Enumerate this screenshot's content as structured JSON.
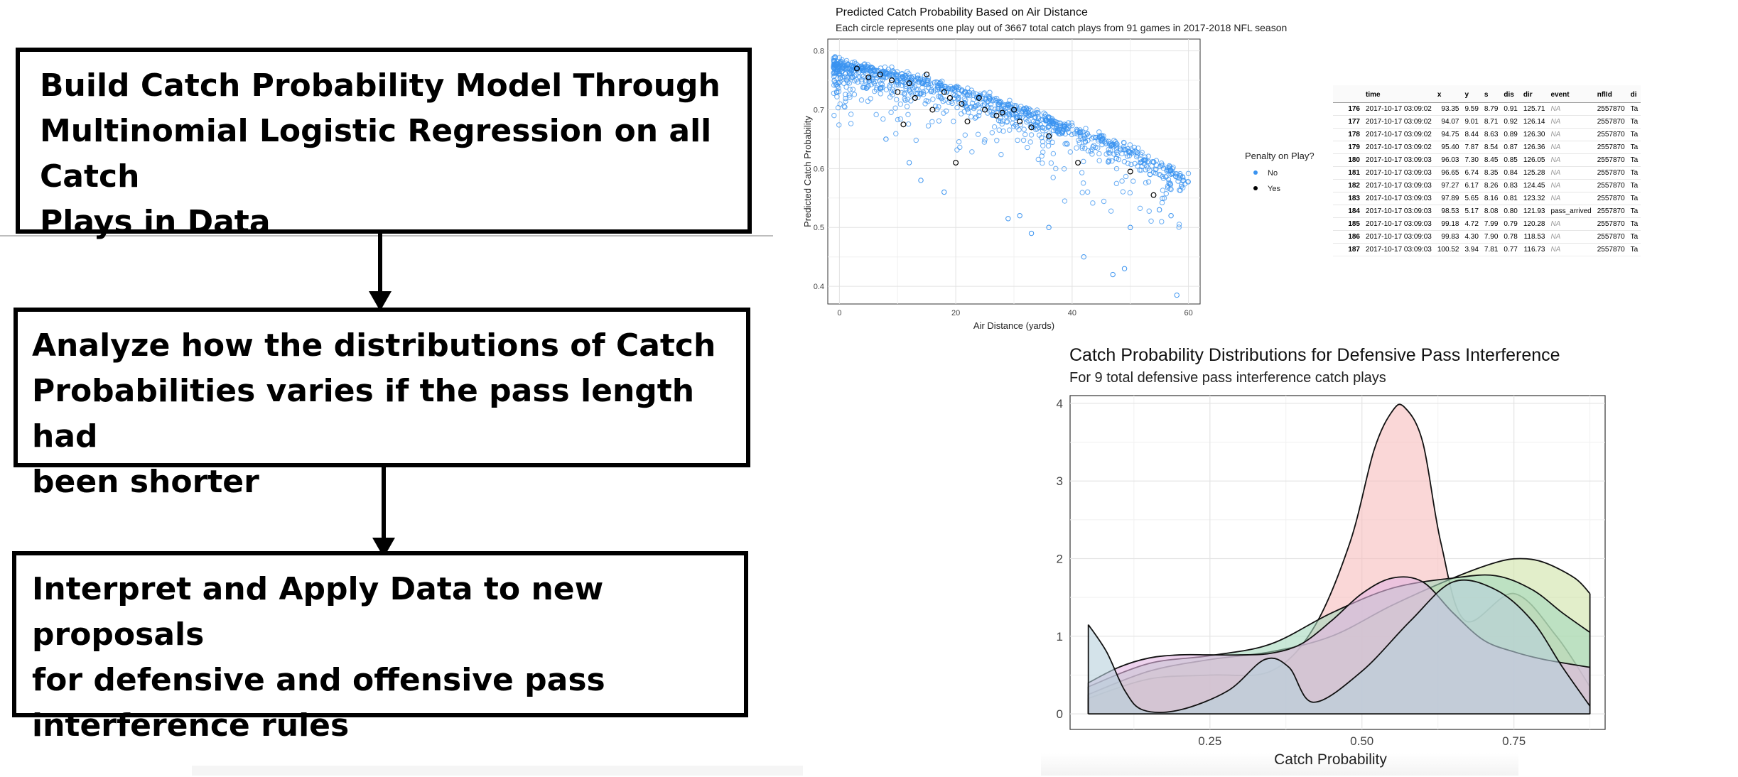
{
  "steps": [
    {
      "lines": [
        "Build Catch Probability Model Through",
        "Multinomial Logistic Regression on all Catch",
        "Plays in Data"
      ]
    },
    {
      "lines": [
        "Analyze how the distributions of Catch",
        "Probabilities varies if the pass length had",
        "been shorter"
      ]
    },
    {
      "lines": [
        "Interpret and Apply Data to new proposals",
        "for defensive and offensive pass",
        "interference rules"
      ]
    }
  ],
  "chart_data": [
    {
      "type": "scatter",
      "title": "Predicted Catch Probability Based on Air Distance",
      "subtitle": "Each circle represents one play out of 3667 total catch plays from 91 games in 2017-2018 NFL season",
      "xlabel": "Air Distance (yards)",
      "ylabel": "Predicted Catch Probability",
      "xlim": [
        -2,
        62
      ],
      "ylim": [
        0.37,
        0.82
      ],
      "xticks": [
        "0",
        "20",
        "40",
        "60"
      ],
      "yticks": [
        "0.4",
        "0.5",
        "0.6",
        "0.7",
        "0.8"
      ],
      "grid": true,
      "legend": {
        "title": "Penalty on Play?",
        "position": "right",
        "entries": [
          "No",
          "Yes"
        ]
      },
      "series": [
        {
          "name": "No",
          "color": "#3a93f0",
          "trend": {
            "x": [
              -1,
              10,
              20,
              30,
              40,
              50,
              60
            ],
            "y": [
              0.775,
              0.755,
              0.73,
              0.7,
              0.665,
              0.625,
              0.575
            ]
          },
          "outliers": [
            [
              42,
              0.45
            ],
            [
              47,
              0.42
            ],
            [
              49,
              0.43
            ],
            [
              58,
              0.385
            ],
            [
              33,
              0.49
            ],
            [
              31,
              0.52
            ],
            [
              29,
              0.515
            ],
            [
              36,
              0.5
            ],
            [
              14,
              0.58
            ],
            [
              18,
              0.56
            ],
            [
              8,
              0.65
            ],
            [
              12,
              0.61
            ],
            [
              50,
              0.5
            ],
            [
              55,
              0.53
            ],
            [
              57,
              0.52
            ]
          ]
        },
        {
          "name": "Yes",
          "color": "#000000",
          "points": [
            [
              3,
              0.77
            ],
            [
              5,
              0.755
            ],
            [
              7,
              0.76
            ],
            [
              9,
              0.75
            ],
            [
              10,
              0.73
            ],
            [
              12,
              0.745
            ],
            [
              13,
              0.72
            ],
            [
              15,
              0.76
            ],
            [
              16,
              0.7
            ],
            [
              18,
              0.73
            ],
            [
              19,
              0.72
            ],
            [
              21,
              0.71
            ],
            [
              22,
              0.68
            ],
            [
              24,
              0.72
            ],
            [
              25,
              0.7
            ],
            [
              27,
              0.69
            ],
            [
              28,
              0.695
            ],
            [
              30,
              0.7
            ],
            [
              31,
              0.68
            ],
            [
              33,
              0.67
            ],
            [
              11,
              0.675
            ],
            [
              20,
              0.61
            ],
            [
              41,
              0.61
            ],
            [
              50,
              0.595
            ],
            [
              54,
              0.555
            ],
            [
              36,
              0.655
            ]
          ]
        }
      ]
    },
    {
      "type": "table",
      "columns": [
        "",
        "time",
        "x",
        "y",
        "s",
        "dis",
        "dir",
        "event",
        "nflId",
        "di"
      ],
      "rows": [
        [
          "176",
          "2017-10-17 03:09:02",
          "93.35",
          "9.59",
          "8.79",
          "0.91",
          "125.71",
          "NA",
          "2557870",
          "Ta"
        ],
        [
          "177",
          "2017-10-17 03:09:02",
          "94.07",
          "9.01",
          "8.71",
          "0.92",
          "126.14",
          "NA",
          "2557870",
          "Ta"
        ],
        [
          "178",
          "2017-10-17 03:09:02",
          "94.75",
          "8.44",
          "8.63",
          "0.89",
          "126.30",
          "NA",
          "2557870",
          "Ta"
        ],
        [
          "179",
          "2017-10-17 03:09:02",
          "95.40",
          "7.87",
          "8.54",
          "0.87",
          "126.36",
          "NA",
          "2557870",
          "Ta"
        ],
        [
          "180",
          "2017-10-17 03:09:03",
          "96.03",
          "7.30",
          "8.45",
          "0.85",
          "126.05",
          "NA",
          "2557870",
          "Ta"
        ],
        [
          "181",
          "2017-10-17 03:09:03",
          "96.65",
          "6.74",
          "8.35",
          "0.84",
          "125.28",
          "NA",
          "2557870",
          "Ta"
        ],
        [
          "182",
          "2017-10-17 03:09:03",
          "97.27",
          "6.17",
          "8.26",
          "0.83",
          "124.45",
          "NA",
          "2557870",
          "Ta"
        ],
        [
          "183",
          "2017-10-17 03:09:03",
          "97.89",
          "5.65",
          "8.16",
          "0.81",
          "123.32",
          "NA",
          "2557870",
          "Ta"
        ],
        [
          "184",
          "2017-10-17 03:09:03",
          "98.53",
          "5.17",
          "8.08",
          "0.80",
          "121.93",
          "pass_arrived",
          "2557870",
          "Ta"
        ],
        [
          "185",
          "2017-10-17 03:09:03",
          "99.18",
          "4.72",
          "7.99",
          "0.79",
          "120.28",
          "NA",
          "2557870",
          "Ta"
        ],
        [
          "186",
          "2017-10-17 03:09:03",
          "99.83",
          "4.30",
          "7.90",
          "0.78",
          "118.53",
          "NA",
          "2557870",
          "Ta"
        ],
        [
          "187",
          "2017-10-17 03:09:03",
          "100.52",
          "3.94",
          "7.81",
          "0.77",
          "116.73",
          "NA",
          "2557870",
          "Ta"
        ]
      ]
    },
    {
      "type": "area",
      "title": "Catch Probability Distributions for Defensive Pass Interference",
      "subtitle": "For 9 total defensive pass interference catch plays",
      "xlabel": "Catch Probability",
      "ylabel": "",
      "xlim": [
        0.02,
        0.9
      ],
      "ylim": [
        -0.2,
        4.1
      ],
      "xticks": [
        0.25,
        0.5,
        0.75
      ],
      "xtick_labels": [
        "0.25",
        "0.50",
        "0.75"
      ],
      "yticks": [
        0,
        1,
        2,
        3,
        4
      ],
      "ytick_labels": [
        "0",
        "1",
        "2",
        "3",
        "4"
      ],
      "grid": true,
      "series": [
        {
          "color": "#f7bcbc",
          "x": [
            0.05,
            0.15,
            0.25,
            0.35,
            0.42,
            0.48,
            0.52,
            0.55,
            0.57,
            0.6,
            0.63,
            0.67,
            0.75,
            0.82,
            0.875
          ],
          "y": [
            0.2,
            0.45,
            0.5,
            0.55,
            1.1,
            2.2,
            3.4,
            3.9,
            3.95,
            3.5,
            2.2,
            1.2,
            1.55,
            1.0,
            0.35
          ]
        },
        {
          "color": "#cfe3a6",
          "x": [
            0.05,
            0.15,
            0.25,
            0.35,
            0.45,
            0.55,
            0.65,
            0.72,
            0.76,
            0.8,
            0.85,
            0.875
          ],
          "y": [
            0.25,
            0.55,
            0.7,
            0.8,
            1.0,
            1.4,
            1.75,
            1.95,
            2.0,
            1.95,
            1.75,
            1.55
          ]
        },
        {
          "color": "#a5d9bd",
          "x": [
            0.05,
            0.15,
            0.25,
            0.35,
            0.45,
            0.55,
            0.65,
            0.72,
            0.78,
            0.83,
            0.875
          ],
          "y": [
            0.35,
            0.65,
            0.75,
            0.9,
            1.3,
            1.62,
            1.75,
            1.78,
            1.6,
            1.3,
            1.05
          ]
        },
        {
          "color": "#e3b6e3",
          "x": [
            0.05,
            0.1,
            0.15,
            0.2,
            0.25,
            0.3,
            0.35,
            0.4,
            0.45,
            0.5,
            0.55,
            0.6,
            0.65,
            0.7,
            0.75,
            0.8,
            0.875
          ],
          "y": [
            0.4,
            0.6,
            0.72,
            0.76,
            0.76,
            0.76,
            0.78,
            0.9,
            1.2,
            1.55,
            1.75,
            1.7,
            1.3,
            0.95,
            0.8,
            0.7,
            0.6
          ]
        },
        {
          "color": "#b8d0dc",
          "x": [
            0.05,
            0.08,
            0.11,
            0.14,
            0.2,
            0.28,
            0.34,
            0.38,
            0.42,
            0.5,
            0.58,
            0.65,
            0.72,
            0.78,
            0.83,
            0.875
          ],
          "y": [
            1.15,
            0.8,
            0.3,
            0.05,
            0.05,
            0.3,
            0.7,
            0.6,
            0.15,
            0.55,
            1.2,
            1.7,
            1.6,
            1.2,
            0.6,
            0.1
          ]
        }
      ]
    }
  ]
}
